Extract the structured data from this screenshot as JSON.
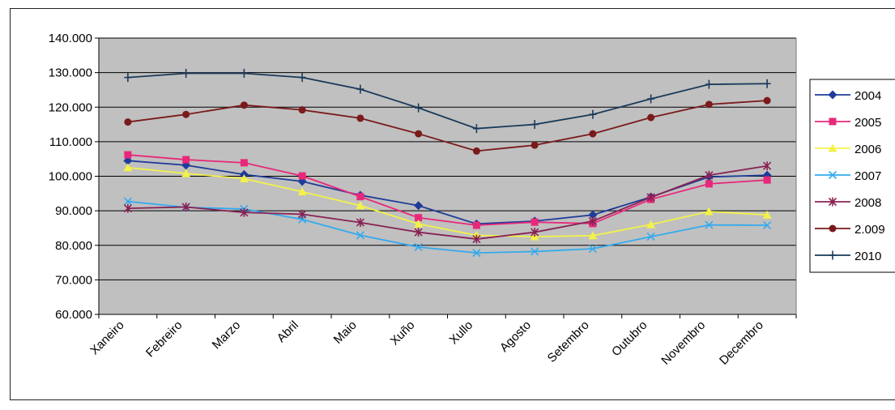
{
  "chart_data": {
    "type": "line",
    "categories": [
      "Xaneiro",
      "Febreiro",
      "Marzo",
      "Abril",
      "Maio",
      "Xuño",
      "Xullo",
      "Agosto",
      "Setembro",
      "Outubro",
      "Novembro",
      "Decembro"
    ],
    "ylim": [
      60000,
      140000
    ],
    "y_ticks": [
      {
        "value": 60000,
        "label": "60.000"
      },
      {
        "value": 70000,
        "label": "70.000"
      },
      {
        "value": 80000,
        "label": "80.000"
      },
      {
        "value": 90000,
        "label": "90.000"
      },
      {
        "value": 100000,
        "label": "100.000"
      },
      {
        "value": 110000,
        "label": "110.000"
      },
      {
        "value": 120000,
        "label": "120.000"
      },
      {
        "value": 130000,
        "label": "130.000"
      },
      {
        "value": 140000,
        "label": "140.000"
      }
    ],
    "grid": true,
    "legend_position": "right",
    "plot_background": "#c0c0c0",
    "series": [
      {
        "name": "2004",
        "color": "#1f3c99",
        "marker": "diamond",
        "values": [
          104500,
          103200,
          100500,
          98500,
          94500,
          91500,
          86200,
          87000,
          88800,
          94000,
          99800,
          100300
        ]
      },
      {
        "name": "2005",
        "color": "#e8287a",
        "marker": "square",
        "values": [
          106200,
          104800,
          103900,
          100100,
          94100,
          88000,
          85800,
          86700,
          86300,
          93300,
          97800,
          98900
        ]
      },
      {
        "name": "2006",
        "color": "#f2f24a",
        "marker": "triangle",
        "values": [
          102500,
          100800,
          99300,
          95500,
          91500,
          86200,
          82900,
          82500,
          82800,
          86000,
          89800,
          88800
        ]
      },
      {
        "name": "2007",
        "color": "#33aaee",
        "marker": "x",
        "values": [
          92700,
          91000,
          90500,
          87500,
          82900,
          79500,
          77800,
          78200,
          79000,
          82500,
          85900,
          85800
        ]
      },
      {
        "name": "2008",
        "color": "#882255",
        "marker": "star",
        "values": [
          90700,
          91100,
          89500,
          89000,
          86600,
          83800,
          81800,
          83800,
          87000,
          93900,
          100300,
          103000
        ]
      },
      {
        "name": "2.009",
        "color": "#7a1a1a",
        "marker": "circle",
        "values": [
          115700,
          117900,
          120600,
          119200,
          116800,
          112300,
          107300,
          109000,
          112300,
          117000,
          120800,
          121900
        ]
      },
      {
        "name": "2010",
        "color": "#1a3a5a",
        "marker": "plus",
        "values": [
          128600,
          129800,
          129800,
          128600,
          125200,
          119800,
          113800,
          115000,
          117900,
          122400,
          126600,
          126800
        ]
      }
    ]
  }
}
